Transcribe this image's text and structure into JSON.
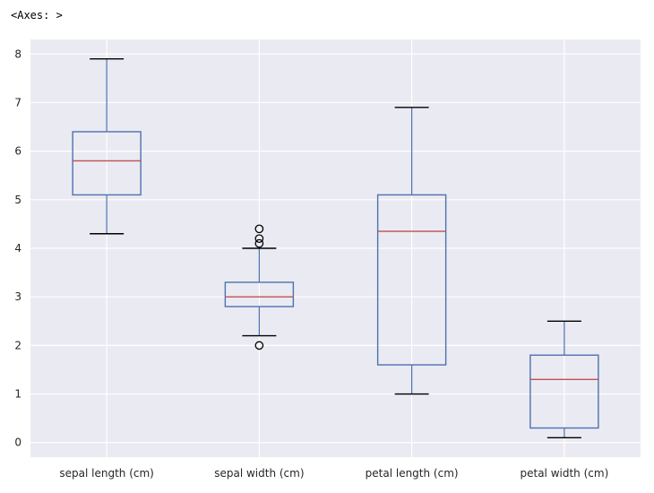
{
  "output_repr": "<Axes: >",
  "chart_data": {
    "type": "box",
    "title": "",
    "xlabel": "",
    "ylabel": "",
    "ylim": [
      -0.3,
      8.3
    ],
    "yticks": [
      0,
      1,
      2,
      3,
      4,
      5,
      6,
      7,
      8
    ],
    "grid": true,
    "categories": [
      "sepal length (cm)",
      "sepal width (cm)",
      "petal length (cm)",
      "petal width (cm)"
    ],
    "boxes": [
      {
        "whisker_low": 4.3,
        "q1": 5.1,
        "median": 5.8,
        "q3": 6.4,
        "whisker_high": 7.9,
        "outliers": []
      },
      {
        "whisker_low": 2.2,
        "q1": 2.8,
        "median": 3.0,
        "q3": 3.3,
        "whisker_high": 4.0,
        "outliers": [
          4.4,
          4.1,
          4.2,
          2.0
        ]
      },
      {
        "whisker_low": 1.0,
        "q1": 1.6,
        "median": 4.35,
        "q3": 5.1,
        "whisker_high": 6.9,
        "outliers": []
      },
      {
        "whisker_low": 0.1,
        "q1": 0.3,
        "median": 1.3,
        "q3": 1.8,
        "whisker_high": 2.5,
        "outliers": []
      }
    ],
    "colors": {
      "background": "#eaeaf2",
      "grid": "#ffffff",
      "box": "#4c72b0",
      "median": "#c44e52",
      "whisker_cap": "#000000",
      "outlier": "#000000"
    }
  }
}
